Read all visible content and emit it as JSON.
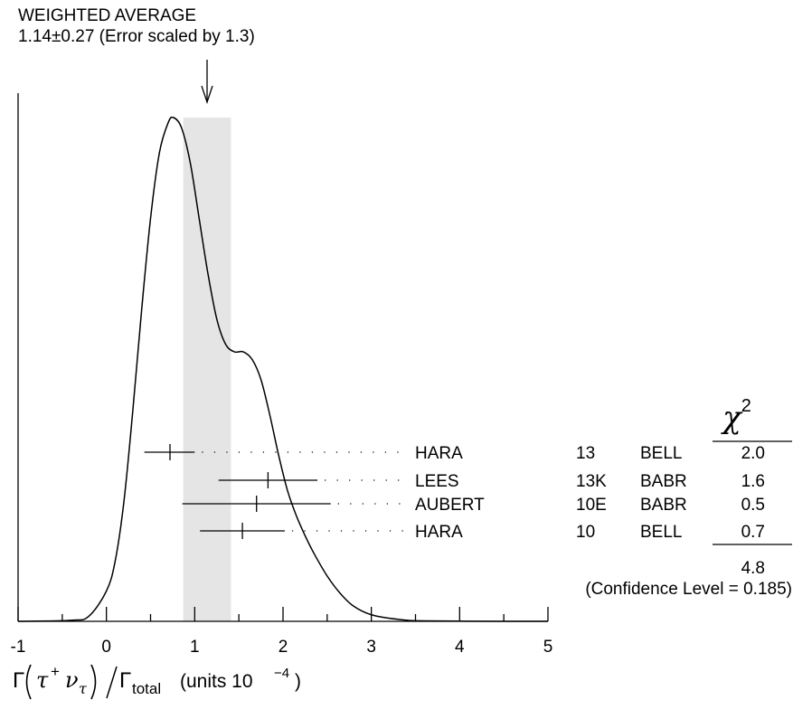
{
  "header": {
    "title": "WEIGHTED AVERAGE",
    "subtitle": "1.14±0.27 (Error scaled by 1.3)"
  },
  "chi2_header": "χ",
  "chi2_header_exp": "2",
  "confidence": "(Confidence Level = 0.185)",
  "xlabel": {
    "gamma": "Γ",
    "tau": "τ",
    "plus": "+",
    "nu": "ν",
    "nu_sub": "τ",
    "total": "total",
    "units": "(units 10",
    "exp": "−4",
    "close": ")"
  },
  "chart_data": {
    "type": "ideogram",
    "xlim": [
      -1,
      5
    ],
    "xticks": [
      -1,
      0,
      1,
      2,
      3,
      4,
      5
    ],
    "xtick_labels": [
      "-1",
      "0",
      "1",
      "2",
      "3",
      "4",
      "5"
    ],
    "average": {
      "value": 1.14,
      "error": 0.27,
      "band": [
        0.87,
        1.41
      ],
      "scale_factor": 1.3
    },
    "measurements": [
      {
        "author": "HARA",
        "year": "13",
        "experiment": "BELL",
        "value": 0.72,
        "lo": 0.43,
        "hi": 1.0,
        "chi2": "2.0"
      },
      {
        "author": "LEES",
        "year": "13K",
        "experiment": "BABR",
        "value": 1.83,
        "lo": 1.27,
        "hi": 2.39,
        "chi2": "1.6"
      },
      {
        "author": "AUBERT",
        "year": "10E",
        "experiment": "BABR",
        "value": 1.7,
        "lo": 0.86,
        "hi": 2.54,
        "chi2": "0.5"
      },
      {
        "author": "HARA",
        "year": "10",
        "experiment": "BELL",
        "value": 1.54,
        "lo": 1.06,
        "hi": 2.02,
        "chi2": "0.7"
      }
    ],
    "chi2_total": "4.8",
    "ideogram_curve": [
      [
        -1.0,
        0.0
      ],
      [
        -0.4,
        0.002
      ],
      [
        -0.2,
        0.01
      ],
      [
        0.0,
        0.06
      ],
      [
        0.1,
        0.12
      ],
      [
        0.2,
        0.24
      ],
      [
        0.3,
        0.42
      ],
      [
        0.4,
        0.62
      ],
      [
        0.5,
        0.8
      ],
      [
        0.6,
        0.93
      ],
      [
        0.7,
        0.99
      ],
      [
        0.76,
        1.0
      ],
      [
        0.85,
        0.98
      ],
      [
        0.95,
        0.91
      ],
      [
        1.05,
        0.8
      ],
      [
        1.15,
        0.69
      ],
      [
        1.25,
        0.6
      ],
      [
        1.35,
        0.55
      ],
      [
        1.45,
        0.535
      ],
      [
        1.55,
        0.535
      ],
      [
        1.65,
        0.52
      ],
      [
        1.75,
        0.48
      ],
      [
        1.85,
        0.41
      ],
      [
        1.95,
        0.33
      ],
      [
        2.05,
        0.26
      ],
      [
        2.15,
        0.21
      ],
      [
        2.25,
        0.17
      ],
      [
        2.35,
        0.135
      ],
      [
        2.5,
        0.09
      ],
      [
        2.65,
        0.055
      ],
      [
        2.8,
        0.03
      ],
      [
        3.0,
        0.013
      ],
      [
        3.3,
        0.004
      ],
      [
        3.6,
        0.001
      ],
      [
        4.5,
        0.0
      ],
      [
        5.0,
        0.0
      ]
    ]
  }
}
